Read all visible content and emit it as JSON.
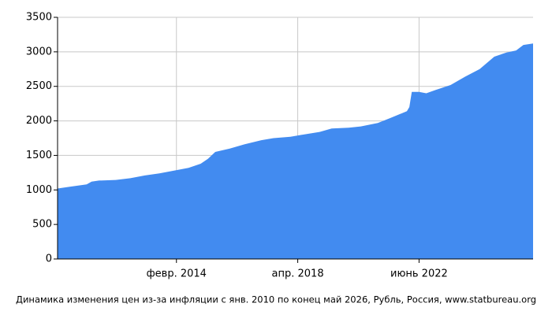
{
  "chart_data": {
    "type": "area",
    "color": "#428bf0",
    "grid": true,
    "caption": "Динамика изменения цен из-за инфляции с янв. 2010 по конец май 2026, Рубль, Россия, www.statbureau.org",
    "x": [
      "2010-01",
      "2010-06",
      "2011-01",
      "2011-03",
      "2011-06",
      "2012-01",
      "2012-07",
      "2013-01",
      "2013-07",
      "2014-01",
      "2014-07",
      "2014-12",
      "2015-03",
      "2015-06",
      "2015-12",
      "2016-06",
      "2017-01",
      "2017-06",
      "2018-01",
      "2018-06",
      "2019-01",
      "2019-06",
      "2020-01",
      "2020-06",
      "2021-01",
      "2021-06",
      "2022-01",
      "2022-02",
      "2022-03",
      "2022-06",
      "2022-09",
      "2023-01",
      "2023-07",
      "2024-01",
      "2024-07",
      "2025-01",
      "2025-06",
      "2025-10",
      "2026-01",
      "2026-05"
    ],
    "values": [
      1020,
      1045,
      1080,
      1120,
      1135,
      1145,
      1170,
      1210,
      1240,
      1280,
      1320,
      1380,
      1450,
      1550,
      1600,
      1660,
      1720,
      1750,
      1770,
      1800,
      1840,
      1890,
      1900,
      1920,
      1970,
      2040,
      2140,
      2200,
      2420,
      2420,
      2400,
      2450,
      2520,
      2640,
      2750,
      2930,
      2990,
      3020,
      3100,
      3120
    ],
    "xlim": [
      "2010-01",
      "2026-05"
    ],
    "xticks": [
      {
        "value": "2014-02",
        "label": "февр. 2014"
      },
      {
        "value": "2018-04",
        "label": "апр. 2018"
      },
      {
        "value": "2022-06",
        "label": "июнь 2022"
      }
    ],
    "ylim": [
      0,
      3500
    ],
    "yticks": [
      0,
      500,
      1000,
      1500,
      2000,
      2500,
      3000,
      3500
    ]
  }
}
